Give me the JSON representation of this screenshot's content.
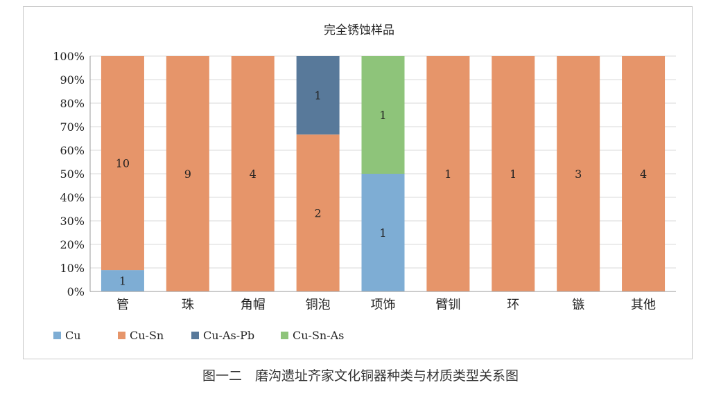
{
  "chart_data": {
    "type": "bar",
    "stacked": true,
    "normalized": true,
    "title": "完全锈蚀样品",
    "categories": [
      "管",
      "珠",
      "角帽",
      "铜泡",
      "项饰",
      "臂钏",
      "环",
      "镞",
      "其他"
    ],
    "series": [
      {
        "name": "Cu",
        "color": "#7eadd4",
        "values": [
          1,
          0,
          0,
          0,
          1,
          0,
          0,
          0,
          0
        ]
      },
      {
        "name": "Cu-Sn",
        "color": "#e6956a",
        "values": [
          10,
          9,
          4,
          2,
          0,
          1,
          1,
          3,
          4
        ]
      },
      {
        "name": "Cu-As-Pb",
        "color": "#58799a",
        "values": [
          0,
          0,
          0,
          1,
          0,
          0,
          0,
          0,
          0
        ]
      },
      {
        "name": "Cu-Sn-As",
        "color": "#8ec47a",
        "values": [
          0,
          0,
          0,
          0,
          1,
          0,
          0,
          0,
          0
        ]
      }
    ],
    "yticks": [
      "0%",
      "10%",
      "20%",
      "30%",
      "40%",
      "50%",
      "60%",
      "70%",
      "80%",
      "90%",
      "100%"
    ],
    "ylim": [
      0,
      100
    ],
    "grid": true,
    "legend": "bottom-left"
  },
  "caption": "图一二　磨沟遗址齐家文化铜器种类与材质类型关系图"
}
